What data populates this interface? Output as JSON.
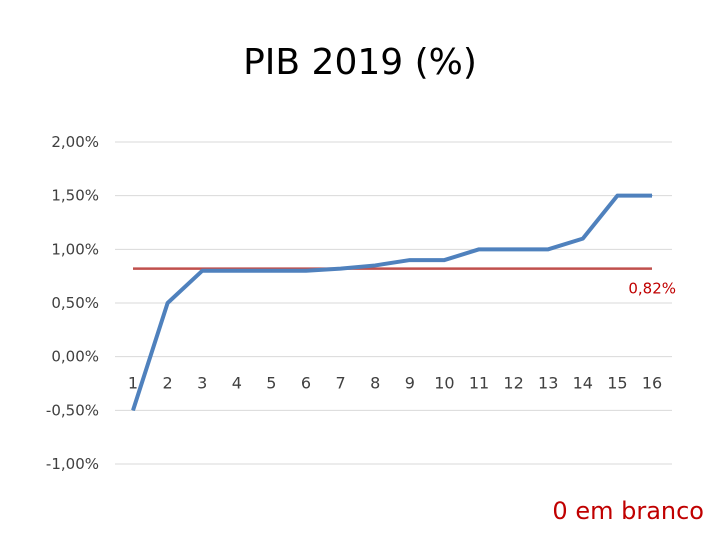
{
  "chart_data": {
    "type": "line",
    "title": "PIB 2019 (%)",
    "x": [
      "1",
      "2",
      "3",
      "4",
      "5",
      "6",
      "7",
      "8",
      "9",
      "10",
      "11",
      "12",
      "13",
      "14",
      "15",
      "16"
    ],
    "series": [
      {
        "values": [
          -0.5,
          0.5,
          0.8,
          0.8,
          0.8,
          0.8,
          0.82,
          0.85,
          0.9,
          0.9,
          1.0,
          1.0,
          1.0,
          1.1,
          1.5,
          1.5
        ],
        "color": "#4f81bd"
      }
    ],
    "reference_line": {
      "value": 0.82,
      "label": "0,82%",
      "color": "#c0504d"
    },
    "y_ticks": [
      {
        "value": 2.0,
        "label": "2,00%"
      },
      {
        "value": 1.5,
        "label": "1,50%"
      },
      {
        "value": 1.0,
        "label": "1,00%"
      },
      {
        "value": 0.5,
        "label": "0,50%"
      },
      {
        "value": 0.0,
        "label": "0,00%"
      },
      {
        "value": -0.5,
        "label": "-0,50%"
      },
      {
        "value": -1.0,
        "label": "-1,00%"
      }
    ],
    "ylim": [
      -1.0,
      2.0
    ],
    "grid": true,
    "legend": "none"
  },
  "footnote": "0 em branco"
}
